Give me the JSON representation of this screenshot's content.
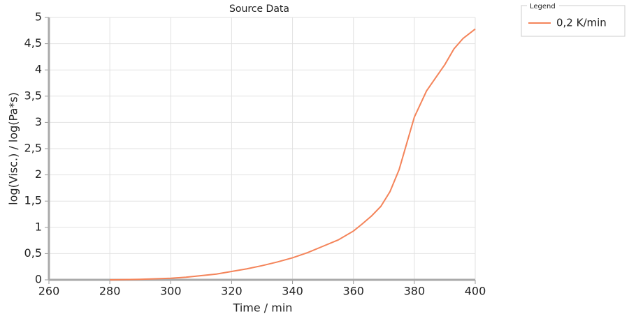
{
  "chart_data": {
    "type": "line",
    "title": "Source Data",
    "x_label": "Time / min",
    "y_label": "log(Visc.) / log(Pa*s)",
    "legend_title": "Legend",
    "legend_position": "top-right",
    "grid": true,
    "x": [
      280,
      290,
      300,
      305,
      310,
      315,
      320,
      325,
      330,
      335,
      340,
      345,
      350,
      355,
      360,
      363,
      366,
      369,
      372,
      375,
      378,
      380,
      382,
      384,
      387,
      390,
      393,
      396,
      400
    ],
    "series": [
      {
        "name": "0,2 K/min",
        "color": "#f4845a",
        "values": [
          0,
          0.01,
          0.03,
          0.05,
          0.08,
          0.11,
          0.16,
          0.21,
          0.27,
          0.34,
          0.42,
          0.52,
          0.64,
          0.76,
          0.93,
          1.07,
          1.22,
          1.4,
          1.68,
          2.1,
          2.7,
          3.1,
          3.35,
          3.6,
          3.85,
          4.1,
          4.4,
          4.6,
          4.78
        ]
      }
    ],
    "xlim": [
      260,
      400
    ],
    "xticks": [
      260,
      280,
      300,
      320,
      340,
      360,
      380,
      400
    ],
    "ylim": [
      0,
      5
    ],
    "yticks": [
      0,
      {
        "value": 0.5,
        "label": "0,5"
      },
      1,
      {
        "value": 1.5,
        "label": "1,5"
      },
      2,
      {
        "value": 2.5,
        "label": "2,5"
      },
      3,
      {
        "value": 3.5,
        "label": "3,5"
      },
      4,
      {
        "value": 4.5,
        "label": "4,5"
      },
      5
    ]
  }
}
